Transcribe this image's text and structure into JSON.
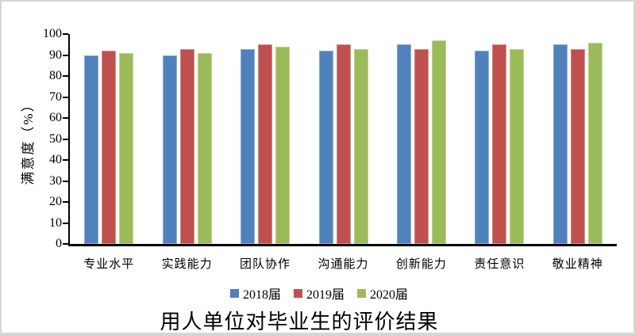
{
  "chart_data": {
    "type": "bar",
    "title": "用人单位对毕业生的评价结果",
    "xlabel": "",
    "ylabel": "满意度（%）",
    "categories": [
      "专业水平",
      "实践能力",
      "团队协作",
      "沟通能力",
      "创新能力",
      "责任意识",
      "敬业精神"
    ],
    "series": [
      {
        "name": "2018届",
        "color": "#4F81BD",
        "values": [
          90,
          90,
          93,
          92,
          95,
          92,
          95
        ]
      },
      {
        "name": "2019届",
        "color": "#C0504D",
        "values": [
          92,
          93,
          95,
          95,
          93,
          95,
          93
        ]
      },
      {
        "name": "2020届",
        "color": "#9BBB59",
        "values": [
          91,
          91,
          94,
          93,
          97,
          93,
          96
        ]
      }
    ],
    "ylim": [
      0,
      100
    ],
    "yticks": [
      0,
      10,
      20,
      30,
      40,
      50,
      60,
      70,
      80,
      90,
      100
    ],
    "grid": false,
    "legend_position": "bottom",
    "axis_color": "#000000",
    "frame_border_color": "#d6d6d6",
    "background_color": "#ffffff"
  }
}
